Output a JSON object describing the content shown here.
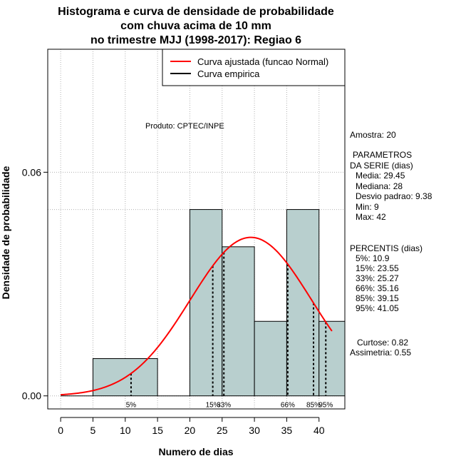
{
  "chart_data": {
    "type": "histogram",
    "title": [
      "Histograma e curva de densidade de probabilidade",
      "com chuva acima de 10 mm",
      "no trimestre MJJ (1998-2017): Regiao 6"
    ],
    "xlabel": "Numero de dias",
    "ylabel": "Densidade de probabilidade",
    "xlim": [
      -2,
      44
    ],
    "ylim": [
      -0.0035,
      0.093
    ],
    "xticks": [
      0,
      5,
      10,
      15,
      20,
      25,
      30,
      35,
      40
    ],
    "yticks": [
      0.0,
      0.06
    ],
    "ytick_labels": [
      "0.00",
      "0.06"
    ],
    "grid": true,
    "bins": [
      {
        "from": 5,
        "to": 15,
        "density": 0.01
      },
      {
        "from": 15,
        "to": 20,
        "density": 0.0
      },
      {
        "from": 20,
        "to": 25,
        "density": 0.05
      },
      {
        "from": 25,
        "to": 30,
        "density": 0.04
      },
      {
        "from": 30,
        "to": 35,
        "density": 0.02
      },
      {
        "from": 35,
        "to": 40,
        "density": 0.05
      },
      {
        "from": 40,
        "to": 45,
        "density": 0.02
      }
    ],
    "normal_curve": {
      "mean": 29.45,
      "sd": 9.38,
      "x_from": 0,
      "x_to": 42
    },
    "percentiles": [
      {
        "label": "5%",
        "x": 10.9
      },
      {
        "label": "15%",
        "x": 23.55
      },
      {
        "label": "33%",
        "x": 25.27
      },
      {
        "label": "66%",
        "x": 35.16
      },
      {
        "label": "85%",
        "x": 39.15
      },
      {
        "label": "95%",
        "x": 41.05
      }
    ],
    "legend": {
      "position": "top-right",
      "entries": [
        {
          "label": "Curva ajustada (funcao Normal)",
          "color": "#ff0000"
        },
        {
          "label": "Curva empirica",
          "color": "#000000"
        }
      ]
    },
    "colors": {
      "bar_fill": "#b8cfce",
      "curve": "#ff0000",
      "grid": "#b0b0b0"
    }
  },
  "annotations": {
    "produto": "Produto: CPTEC/INPE",
    "amostra": "Amostra: 20",
    "parametros_title_1": "PARAMETROS",
    "parametros_title_2": "DA SERIE (dias)",
    "media": "Media: 29.45",
    "mediana": "Mediana: 28",
    "desvio": "Desvio padrao: 9.38",
    "min": "Min: 9",
    "max": "Max: 42",
    "percentis_title": "PERCENTIS (dias)",
    "p5": "5%: 10.9",
    "p15": "15%: 23.55",
    "p33": "33%: 25.27",
    "p66": "66%: 35.16",
    "p85": "85%: 39.15",
    "p95": "95%: 41.05",
    "curtose": "Curtose: 0.82",
    "assimetria": "Assimetria: 0.55"
  }
}
